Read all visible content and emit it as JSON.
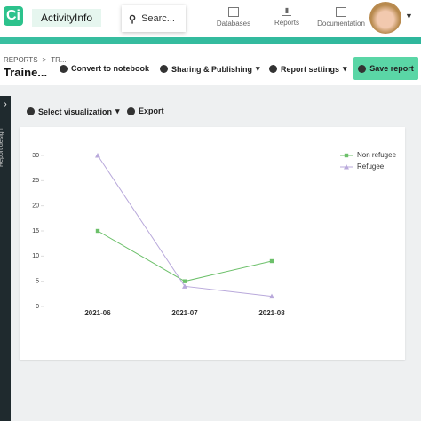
{
  "header": {
    "brand": "ActivityInfo",
    "search": "Searc...",
    "nav": [
      "Databases",
      "Reports",
      "Documentation"
    ]
  },
  "breadcrumb": {
    "root": "REPORTS",
    "current": "TR..."
  },
  "title": "Traine...",
  "toolbar": [
    "Convert to notebook",
    "Sharing & Publishing",
    "Report settings",
    "Save report"
  ],
  "sidebar": "Report design",
  "actions": [
    "Select visualization",
    "Export"
  ],
  "chart_data": {
    "type": "line",
    "categories": [
      "2021-06",
      "2021-07",
      "2021-08"
    ],
    "series": [
      {
        "name": "Non refugee",
        "color": "#6cc06a",
        "marker": "square",
        "values": [
          15,
          5,
          9
        ]
      },
      {
        "name": "Refugee",
        "color": "#b9a9db",
        "marker": "triangle",
        "values": [
          30,
          4,
          2
        ]
      }
    ],
    "ylim": [
      0,
      30
    ],
    "yticks": [
      0,
      5,
      10,
      15,
      20,
      25,
      30
    ],
    "legend": "top-right"
  }
}
